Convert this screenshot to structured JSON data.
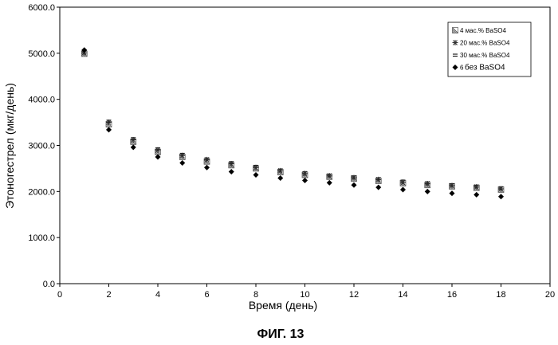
{
  "figure_caption": "ФИГ. 13",
  "chart_data": {
    "type": "scatter",
    "xlabel": "Время (день)",
    "ylabel": "Этоногестрел (мкг/день)",
    "xlim": [
      0,
      20
    ],
    "ylim": [
      0,
      6000
    ],
    "x_ticks": [
      "0",
      "2",
      "4",
      "6",
      "8",
      "10",
      "12",
      "14",
      "16",
      "18",
      "20"
    ],
    "y_ticks": [
      "0.0",
      "1000.0",
      "2000.0",
      "3000.0",
      "4000.0",
      "5000.0",
      "6000.0"
    ],
    "grid": false,
    "legend_position": "top-right",
    "x": [
      1,
      2,
      3,
      4,
      5,
      6,
      7,
      8,
      9,
      10,
      11,
      12,
      13,
      14,
      15,
      16,
      17,
      18
    ],
    "series": [
      {
        "name": "4 мас.% BaSO4",
        "marker": "hatched-square",
        "color": "#555555",
        "values": [
          4990,
          3460,
          3080,
          2860,
          2750,
          2650,
          2570,
          2500,
          2420,
          2360,
          2320,
          2280,
          2230,
          2180,
          2140,
          2110,
          2080,
          2040
        ]
      },
      {
        "name": "20 мас.% BaSO4",
        "marker": "asterisk",
        "color": "#333333",
        "values": [
          5010,
          3500,
          3120,
          2900,
          2780,
          2690,
          2600,
          2520,
          2450,
          2390,
          2340,
          2300,
          2260,
          2200,
          2170,
          2130,
          2100,
          2060
        ]
      },
      {
        "name": "30 мас.% BaSO4",
        "marker": "dash",
        "color": "#222222",
        "values": [
          5030,
          3530,
          3150,
          2930,
          2810,
          2710,
          2630,
          2550,
          2470,
          2410,
          2360,
          2320,
          2280,
          2230,
          2190,
          2150,
          2120,
          2080
        ]
      },
      {
        "name": "без BaSO4",
        "legend_prefix": "6",
        "marker": "diamond",
        "color": "#000000",
        "values": [
          5070,
          3340,
          2960,
          2750,
          2620,
          2520,
          2430,
          2360,
          2290,
          2240,
          2190,
          2140,
          2090,
          2040,
          2000,
          1960,
          1930,
          1890
        ]
      }
    ]
  }
}
